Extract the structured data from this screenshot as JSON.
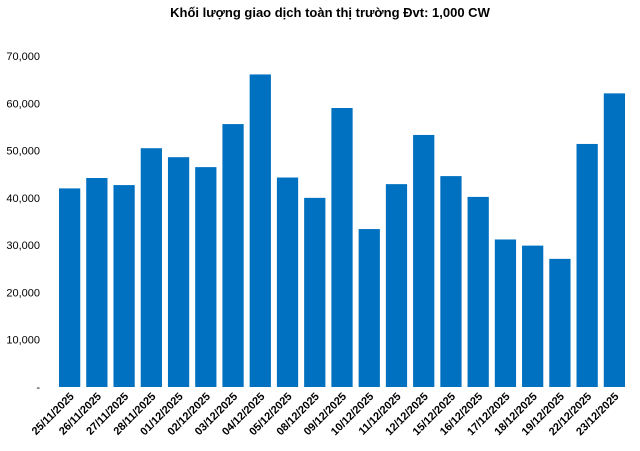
{
  "chart_data": {
    "type": "bar",
    "title": "Khối lượng giao dịch toàn thị trường Đvt: 1,000 CW",
    "xlabel": "",
    "ylabel": "",
    "ylim": [
      0,
      70000
    ],
    "grid": false,
    "legend": "none",
    "yticks": [
      {
        "value": 0,
        "label": "-"
      },
      {
        "value": 10000,
        "label": "10,000"
      },
      {
        "value": 20000,
        "label": "20,000"
      },
      {
        "value": 30000,
        "label": "30,000"
      },
      {
        "value": 40000,
        "label": "40,000"
      },
      {
        "value": 50000,
        "label": "50,000"
      },
      {
        "value": 60000,
        "label": "60,000"
      },
      {
        "value": 70000,
        "label": "70,000"
      }
    ],
    "categories": [
      "25/11/2025",
      "26/11/2025",
      "27/11/2025",
      "28/11/2025",
      "01/12/2025",
      "02/12/2025",
      "03/12/2025",
      "04/12/2025",
      "05/12/2025",
      "08/12/2025",
      "09/12/2025",
      "10/12/2025",
      "11/12/2025",
      "12/12/2025",
      "15/12/2025",
      "16/12/2025",
      "17/12/2025",
      "18/12/2025",
      "19/12/2025",
      "22/12/2025",
      "23/12/2025"
    ],
    "values": [
      42000,
      44200,
      42700,
      50500,
      48600,
      46500,
      55600,
      66100,
      44300,
      40000,
      59000,
      33400,
      42900,
      53300,
      44600,
      40200,
      31200,
      29900,
      27100,
      51400,
      62100
    ],
    "bar_color": "#0070c0"
  }
}
